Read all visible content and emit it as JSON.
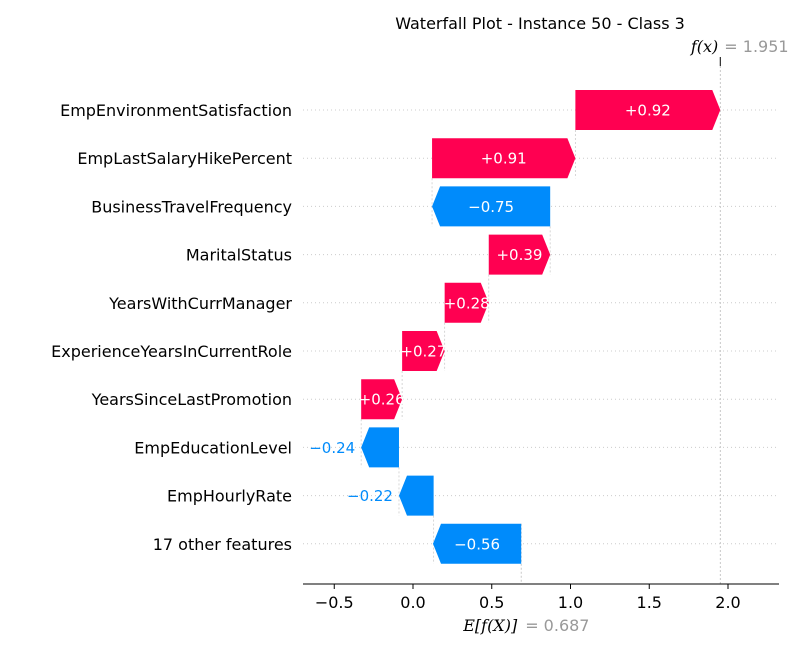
{
  "chart_data": {
    "type": "waterfall",
    "title": "Waterfall Plot - Instance 50 - Class 3",
    "base_value": 0.687,
    "base_label": "E[f(X)]",
    "base_value_text": "= 0.687",
    "output_value": 1.951,
    "output_label": "f(x)",
    "output_value_text": "= 1.951",
    "xlim": [
      -0.7,
      2.35
    ],
    "xticks": [
      -0.5,
      0.0,
      0.5,
      1.0,
      1.5,
      2.0
    ],
    "xtick_labels": [
      "−0.5",
      "0.0",
      "0.5",
      "1.0",
      "1.5",
      "2.0"
    ],
    "features": [
      {
        "name": "EmpEnvironmentSatisfaction",
        "value": 0.92,
        "label": "+0.92",
        "start": 1.031
      },
      {
        "name": "EmpLastSalaryHikePercent",
        "value": 0.91,
        "label": "+0.91",
        "start": 0.121
      },
      {
        "name": "BusinessTravelFrequency",
        "value": -0.75,
        "label": "−0.75",
        "start": 0.871
      },
      {
        "name": "MaritalStatus",
        "value": 0.39,
        "label": "+0.39",
        "start": 0.481
      },
      {
        "name": "YearsWithCurrManager",
        "value": 0.28,
        "label": "+0.28",
        "start": 0.201
      },
      {
        "name": "ExperienceYearsInCurrentRole",
        "value": 0.27,
        "label": "+0.27",
        "start": -0.069
      },
      {
        "name": "YearsSinceLastPromotion",
        "value": 0.26,
        "label": "+0.26",
        "start": -0.329
      },
      {
        "name": "EmpEducationLevel",
        "value": -0.24,
        "label": "−0.24",
        "start": -0.089
      },
      {
        "name": "EmpHourlyRate",
        "value": -0.22,
        "label": "−0.22",
        "start": 0.131
      },
      {
        "name": "17 other features",
        "value": -0.56,
        "label": "−0.56",
        "start": 0.687
      }
    ],
    "colors": {
      "positive": "#ff0051",
      "negative": "#008bfb"
    }
  }
}
